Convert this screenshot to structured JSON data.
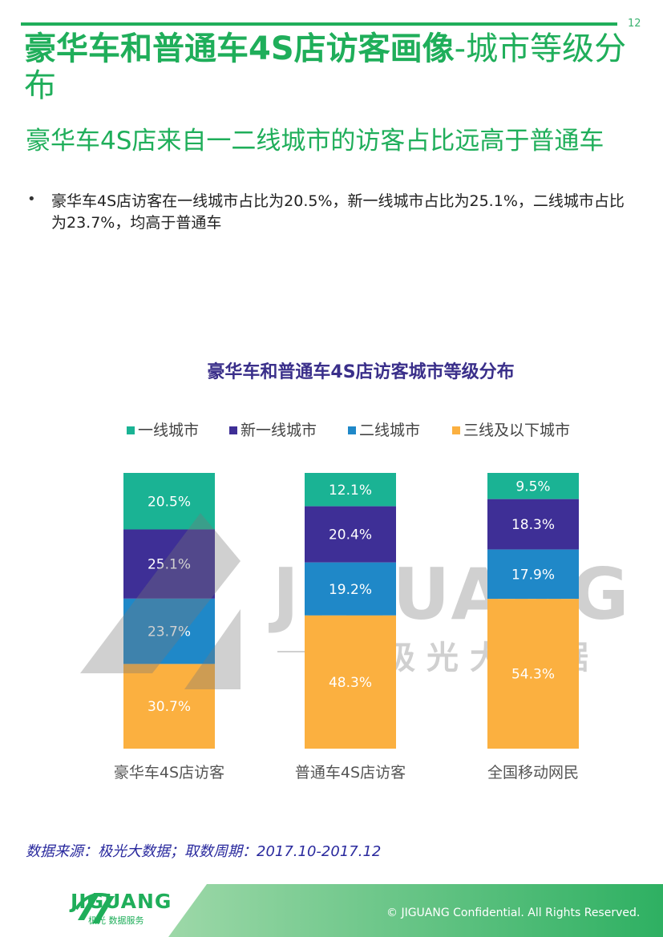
{
  "page": {
    "number": "12",
    "title_main": "豪华车和普通车4S店访客画像",
    "title_tail": "-城市等级分布",
    "subtitle": "豪华车4S店来自一二线城市的访客占比远高于普通车",
    "bullet": "豪华车4S店访客在一线城市占比为20.5%，新一线城市占比为25.1%，二线城市占比为23.7%，均高于普通车",
    "source": "数据来源：极光大数据；取数周期：2017.10-2017.12",
    "footer": "© JIGUANG Confidential. All Rights Reserved.",
    "logo_word": "JIGUANG",
    "logo_sub": "极光 数据服务",
    "watermark_word": "JIGUANG",
    "watermark_sub": "极光大数据"
  },
  "colors": {
    "brand_green": "#1fae5a",
    "series": [
      "#1ab394",
      "#3e2f96",
      "#1f88c8",
      "#fbb040"
    ]
  },
  "chart_data": {
    "type": "bar",
    "stacked": true,
    "title": "豪华车和普通车4S店访客城市等级分布",
    "categories": [
      "豪华车4S店访客",
      "普通车4S店访客",
      "全国移动网民"
    ],
    "series": [
      {
        "name": "一线城市",
        "values": [
          20.5,
          12.1,
          9.5
        ],
        "labels": [
          "20.5%",
          "12.1%",
          "9.5%"
        ]
      },
      {
        "name": "新一线城市",
        "values": [
          25.1,
          20.4,
          18.3
        ],
        "labels": [
          "25.1%",
          "20.4%",
          "18.3%"
        ]
      },
      {
        "name": "二线城市",
        "values": [
          23.7,
          19.2,
          17.9
        ],
        "labels": [
          "23.7%",
          "19.2%",
          "17.9%"
        ]
      },
      {
        "name": "三线及以下城市",
        "values": [
          30.7,
          48.3,
          54.3
        ],
        "labels": [
          "30.7%",
          "48.3%",
          "54.3%"
        ]
      }
    ],
    "ylim": [
      0,
      100
    ],
    "legend_position": "top",
    "grid": false
  }
}
